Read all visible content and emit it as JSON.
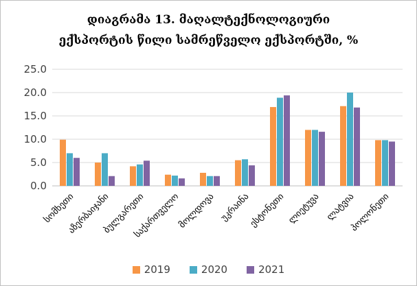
{
  "chart_data": {
    "type": "bar",
    "title": [
      "დიაგრამა 13. მაღალტექნოლოგიური",
      "ექსპორტის წილი სამრეწველო ექსპორტში, %"
    ],
    "categories": [
      "სომხეთი",
      "აზერბაიჯანი",
      "ბულგარეთი",
      "საქართველო",
      "მოლდოვა",
      "უკრაინა",
      "ესტონეთი",
      "ლიეტუვა",
      "ლატვია",
      "პოლონეთი"
    ],
    "yticks": [
      "0.0",
      "5.0",
      "10.0",
      "15.0",
      "20.0",
      "25.0"
    ],
    "ylim": [
      0,
      25
    ],
    "grid": true,
    "legend_position": "bottom",
    "series": [
      {
        "name": "2019",
        "color": "#f79646",
        "values": [
          9.9,
          5.0,
          4.2,
          2.4,
          2.8,
          5.5,
          16.9,
          12.0,
          17.1,
          9.8
        ]
      },
      {
        "name": "2020",
        "color": "#4bacc6",
        "values": [
          7.0,
          7.0,
          4.6,
          2.2,
          2.1,
          5.7,
          18.9,
          12.0,
          20.0,
          9.8
        ]
      },
      {
        "name": "2021",
        "color": "#8064a2",
        "values": [
          6.0,
          2.1,
          5.4,
          1.6,
          2.1,
          4.4,
          19.4,
          11.6,
          16.8,
          9.5
        ]
      }
    ]
  }
}
